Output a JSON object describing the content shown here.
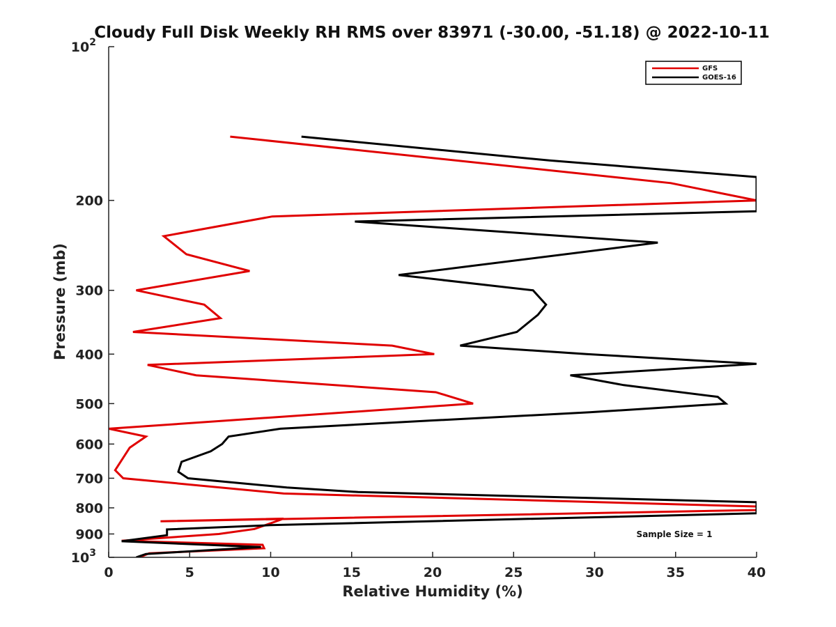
{
  "chart_data": {
    "type": "line",
    "title": "Cloudy Full Disk Weekly RH RMS over 83971 (-30.00, -51.18) @ 2022-10-11",
    "xlabel": "Relative Humidity (%)",
    "ylabel": "Pressure (mb)",
    "xlim": [
      0,
      40
    ],
    "ylim": [
      100,
      1000
    ],
    "y_scale": "log",
    "y_reversed": true,
    "x_ticks": [
      0,
      5,
      10,
      15,
      20,
      25,
      30,
      35,
      40
    ],
    "y_ticks": [
      {
        "value": 100,
        "label": "10",
        "sup": "2"
      },
      {
        "value": 200,
        "label": "200"
      },
      {
        "value": 300,
        "label": "300"
      },
      {
        "value": 400,
        "label": "400"
      },
      {
        "value": 500,
        "label": "500"
      },
      {
        "value": 600,
        "label": "600"
      },
      {
        "value": 700,
        "label": "700"
      },
      {
        "value": 800,
        "label": "800"
      },
      {
        "value": 900,
        "label": "900"
      },
      {
        "value": 1000,
        "label": "10",
        "sup": "3"
      }
    ],
    "grid": false,
    "legend_position": "top-right",
    "annotation": "Sample Size = 1",
    "series": [
      {
        "name": "GFS",
        "color": "#e00000",
        "points": [
          [
            7.5,
            150
          ],
          [
            34.7,
            185
          ],
          [
            40,
            200
          ],
          [
            10.1,
            215
          ],
          [
            3.4,
            235
          ],
          [
            4.8,
            255
          ],
          [
            8.7,
            275
          ],
          [
            1.7,
            300
          ],
          [
            5.9,
            320
          ],
          [
            6.9,
            340
          ],
          [
            1.5,
            362
          ],
          [
            17.5,
            385
          ],
          [
            20.1,
            400
          ],
          [
            2.4,
            420
          ],
          [
            5.4,
            440
          ],
          [
            20.2,
            475
          ],
          [
            22.5,
            500
          ],
          [
            0.0,
            560
          ],
          [
            2.3,
            580
          ],
          [
            1.3,
            610
          ],
          [
            0.4,
            675
          ],
          [
            0.9,
            700
          ],
          [
            10.8,
            750
          ],
          [
            40,
            795
          ],
          [
            40,
            808
          ],
          [
            3.2,
            850
          ],
          [
            10.8,
            840
          ],
          [
            9.0,
            880
          ],
          [
            6.8,
            900
          ],
          [
            0.8,
            928
          ],
          [
            9.5,
            945
          ],
          [
            9.6,
            960
          ],
          [
            2.5,
            982
          ],
          [
            1.9,
            1000
          ]
        ]
      },
      {
        "name": "GOES-16",
        "color": "#000000",
        "points": [
          [
            11.9,
            150
          ],
          [
            27.2,
            167
          ],
          [
            40,
            180
          ],
          [
            40,
            210
          ],
          [
            15.2,
            220
          ],
          [
            33.9,
            242
          ],
          [
            17.9,
            280
          ],
          [
            26.2,
            300
          ],
          [
            27.0,
            320
          ],
          [
            26.5,
            335
          ],
          [
            25.2,
            362
          ],
          [
            21.7,
            385
          ],
          [
            29.5,
            400
          ],
          [
            40,
            418
          ],
          [
            28.5,
            440
          ],
          [
            31.8,
            460
          ],
          [
            37.6,
            485
          ],
          [
            38.1,
            500
          ],
          [
            29.7,
            520
          ],
          [
            19.8,
            540
          ],
          [
            10.6,
            560
          ],
          [
            7.4,
            580
          ],
          [
            7.0,
            600
          ],
          [
            6.3,
            620
          ],
          [
            4.5,
            650
          ],
          [
            4.3,
            680
          ],
          [
            4.9,
            700
          ],
          [
            11.0,
            730
          ],
          [
            15.4,
            745
          ],
          [
            40,
            780
          ],
          [
            40,
            820
          ],
          [
            10.0,
            865
          ],
          [
            3.6,
            882
          ],
          [
            3.6,
            905
          ],
          [
            0.8,
            930
          ],
          [
            9.4,
            955
          ],
          [
            2.3,
            985
          ],
          [
            1.7,
            1000
          ]
        ]
      }
    ]
  }
}
